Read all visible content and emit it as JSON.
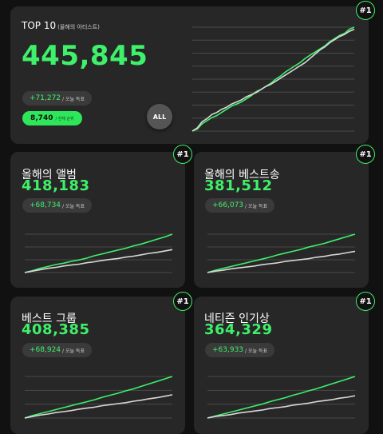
{
  "colors": {
    "accent": "#3ef06a",
    "secondary_line": "#d8d8d8",
    "card": "#272727",
    "background": "#111111"
  },
  "hero": {
    "title": "TOP 10",
    "subtitle": "(올해의 아티스트)",
    "value": "445,845",
    "delta": "+71,272",
    "delta_suffix": "/ 오늘 득표",
    "rank_value": "8,740",
    "rank_suffix": "/ 전체 순위",
    "badge": "#1",
    "all_button": "ALL",
    "chart_data": {
      "type": "line",
      "series": [
        {
          "values": [
            0,
            2,
            7,
            10,
            13,
            15,
            18,
            21,
            24,
            26,
            28,
            31,
            34,
            38,
            40,
            43,
            46,
            50,
            53,
            57,
            60,
            63,
            66,
            70,
            73,
            76,
            79,
            82,
            86,
            89,
            92,
            94,
            98,
            100
          ]
        },
        {
          "values": [
            0,
            3,
            9,
            12,
            16,
            18,
            21,
            23,
            26,
            28,
            30,
            33,
            35,
            37,
            40,
            43,
            45,
            48,
            51,
            54,
            57,
            60,
            63,
            66,
            70,
            74,
            78,
            81,
            85,
            88,
            91,
            93,
            96,
            98
          ]
        }
      ]
    }
  },
  "cards": [
    {
      "title": "올해의 앨범",
      "value": "418,183",
      "delta": "+68,734",
      "delta_suffix": "/ 오늘 득표",
      "badge": "#1",
      "chart_data": {
        "type": "line",
        "series": [
          {
            "values": [
              0,
              4,
              9,
              13,
              17,
              20,
              24,
              27,
              31,
              36,
              40,
              44,
              48,
              52,
              57,
              61,
              66,
              71,
              76,
              82
            ]
          },
          {
            "values": [
              0,
              3,
              6,
              9,
              11,
              14,
              16,
              18,
              21,
              23,
              26,
              28,
              30,
              33,
              35,
              38,
              41,
              43,
              46,
              49
            ]
          }
        ]
      }
    },
    {
      "title": "올해의 베스트송",
      "value": "381,512",
      "delta": "+66,073",
      "delta_suffix": "/ 오늘 득표",
      "badge": "#1",
      "chart_data": {
        "type": "line",
        "series": [
          {
            "values": [
              0,
              5,
              9,
              13,
              17,
              21,
              25,
              29,
              33,
              38,
              42,
              46,
              50,
              55,
              59,
              63,
              68,
              73,
              78,
              83
            ]
          },
          {
            "values": [
              0,
              3,
              5,
              8,
              10,
              12,
              14,
              17,
              19,
              21,
              24,
              26,
              28,
              30,
              33,
              35,
              38,
              40,
              43,
              46
            ]
          }
        ]
      }
    },
    {
      "title": "베스트 그룹",
      "value": "408,385",
      "delta": "+68,924",
      "delta_suffix": "/ 오늘 득표",
      "badge": "#1",
      "chart_data": {
        "type": "line",
        "series": [
          {
            "values": [
              0,
              5,
              9,
              13,
              17,
              21,
              25,
              29,
              33,
              37,
              42,
              46,
              50,
              55,
              59,
              64,
              69,
              74,
              79,
              84
            ]
          },
          {
            "values": [
              0,
              3,
              6,
              8,
              11,
              13,
              15,
              18,
              20,
              22,
              25,
              27,
              29,
              31,
              34,
              36,
              39,
              41,
              44,
              47
            ]
          }
        ]
      }
    },
    {
      "title": "네티즌 인기상",
      "value": "364,329",
      "delta": "+63,933",
      "delta_suffix": "/ 오늘 득표",
      "badge": "#1",
      "chart_data": {
        "type": "line",
        "series": [
          {
            "values": [
              0,
              4,
              8,
              12,
              16,
              20,
              24,
              28,
              33,
              37,
              41,
              46,
              50,
              55,
              59,
              64,
              69,
              74,
              79,
              84
            ]
          },
          {
            "values": [
              0,
              3,
              5,
              7,
              10,
              12,
              14,
              16,
              19,
              21,
              23,
              26,
              28,
              30,
              33,
              35,
              37,
              40,
              42,
              45
            ]
          }
        ]
      }
    }
  ]
}
